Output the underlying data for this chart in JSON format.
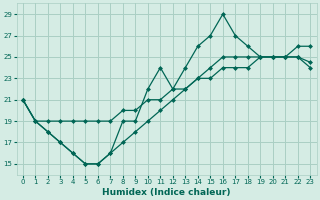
{
  "xlabel": "Humidex (Indice chaleur)",
  "bg_color": "#d5ece4",
  "grid_color": "#aacfc4",
  "line_color": "#006655",
  "xlim": [
    -0.5,
    23.5
  ],
  "ylim": [
    14.0,
    30.0
  ],
  "yticks": [
    15,
    17,
    19,
    21,
    23,
    25,
    27,
    29
  ],
  "xticks": [
    0,
    1,
    2,
    3,
    4,
    5,
    6,
    7,
    8,
    9,
    10,
    11,
    12,
    13,
    14,
    15,
    16,
    17,
    18,
    19,
    20,
    21,
    22,
    23
  ],
  "line1_x": [
    0,
    1,
    2,
    3,
    4,
    5,
    6,
    7,
    8,
    9,
    10,
    11,
    12,
    13,
    14,
    15,
    16,
    17,
    18,
    19,
    20,
    21,
    22,
    23
  ],
  "line1_y": [
    21,
    19,
    18,
    17,
    16,
    15,
    15,
    16,
    19,
    19,
    22,
    24,
    22,
    24,
    26,
    27,
    29,
    27,
    26,
    25,
    25,
    25,
    25,
    24.5
  ],
  "line2_x": [
    0,
    1,
    2,
    3,
    4,
    5,
    6,
    7,
    8,
    9,
    10,
    11,
    12,
    13,
    14,
    15,
    16,
    17,
    18,
    19,
    20,
    21,
    22,
    23
  ],
  "line2_y": [
    21,
    19,
    19,
    19,
    19,
    19,
    19,
    19,
    20,
    20,
    21,
    21,
    22,
    22,
    23,
    23,
    24,
    24,
    24,
    25,
    25,
    25,
    26,
    26
  ],
  "line3_x": [
    0,
    1,
    2,
    3,
    4,
    5,
    6,
    7,
    8,
    9,
    10,
    11,
    12,
    13,
    14,
    15,
    16,
    17,
    18,
    19,
    20,
    21,
    22,
    23
  ],
  "line3_y": [
    21,
    19,
    18,
    17,
    16,
    15,
    15,
    16,
    17,
    18,
    19,
    20,
    21,
    22,
    23,
    24,
    25,
    25,
    25,
    25,
    25,
    25,
    25,
    24
  ]
}
